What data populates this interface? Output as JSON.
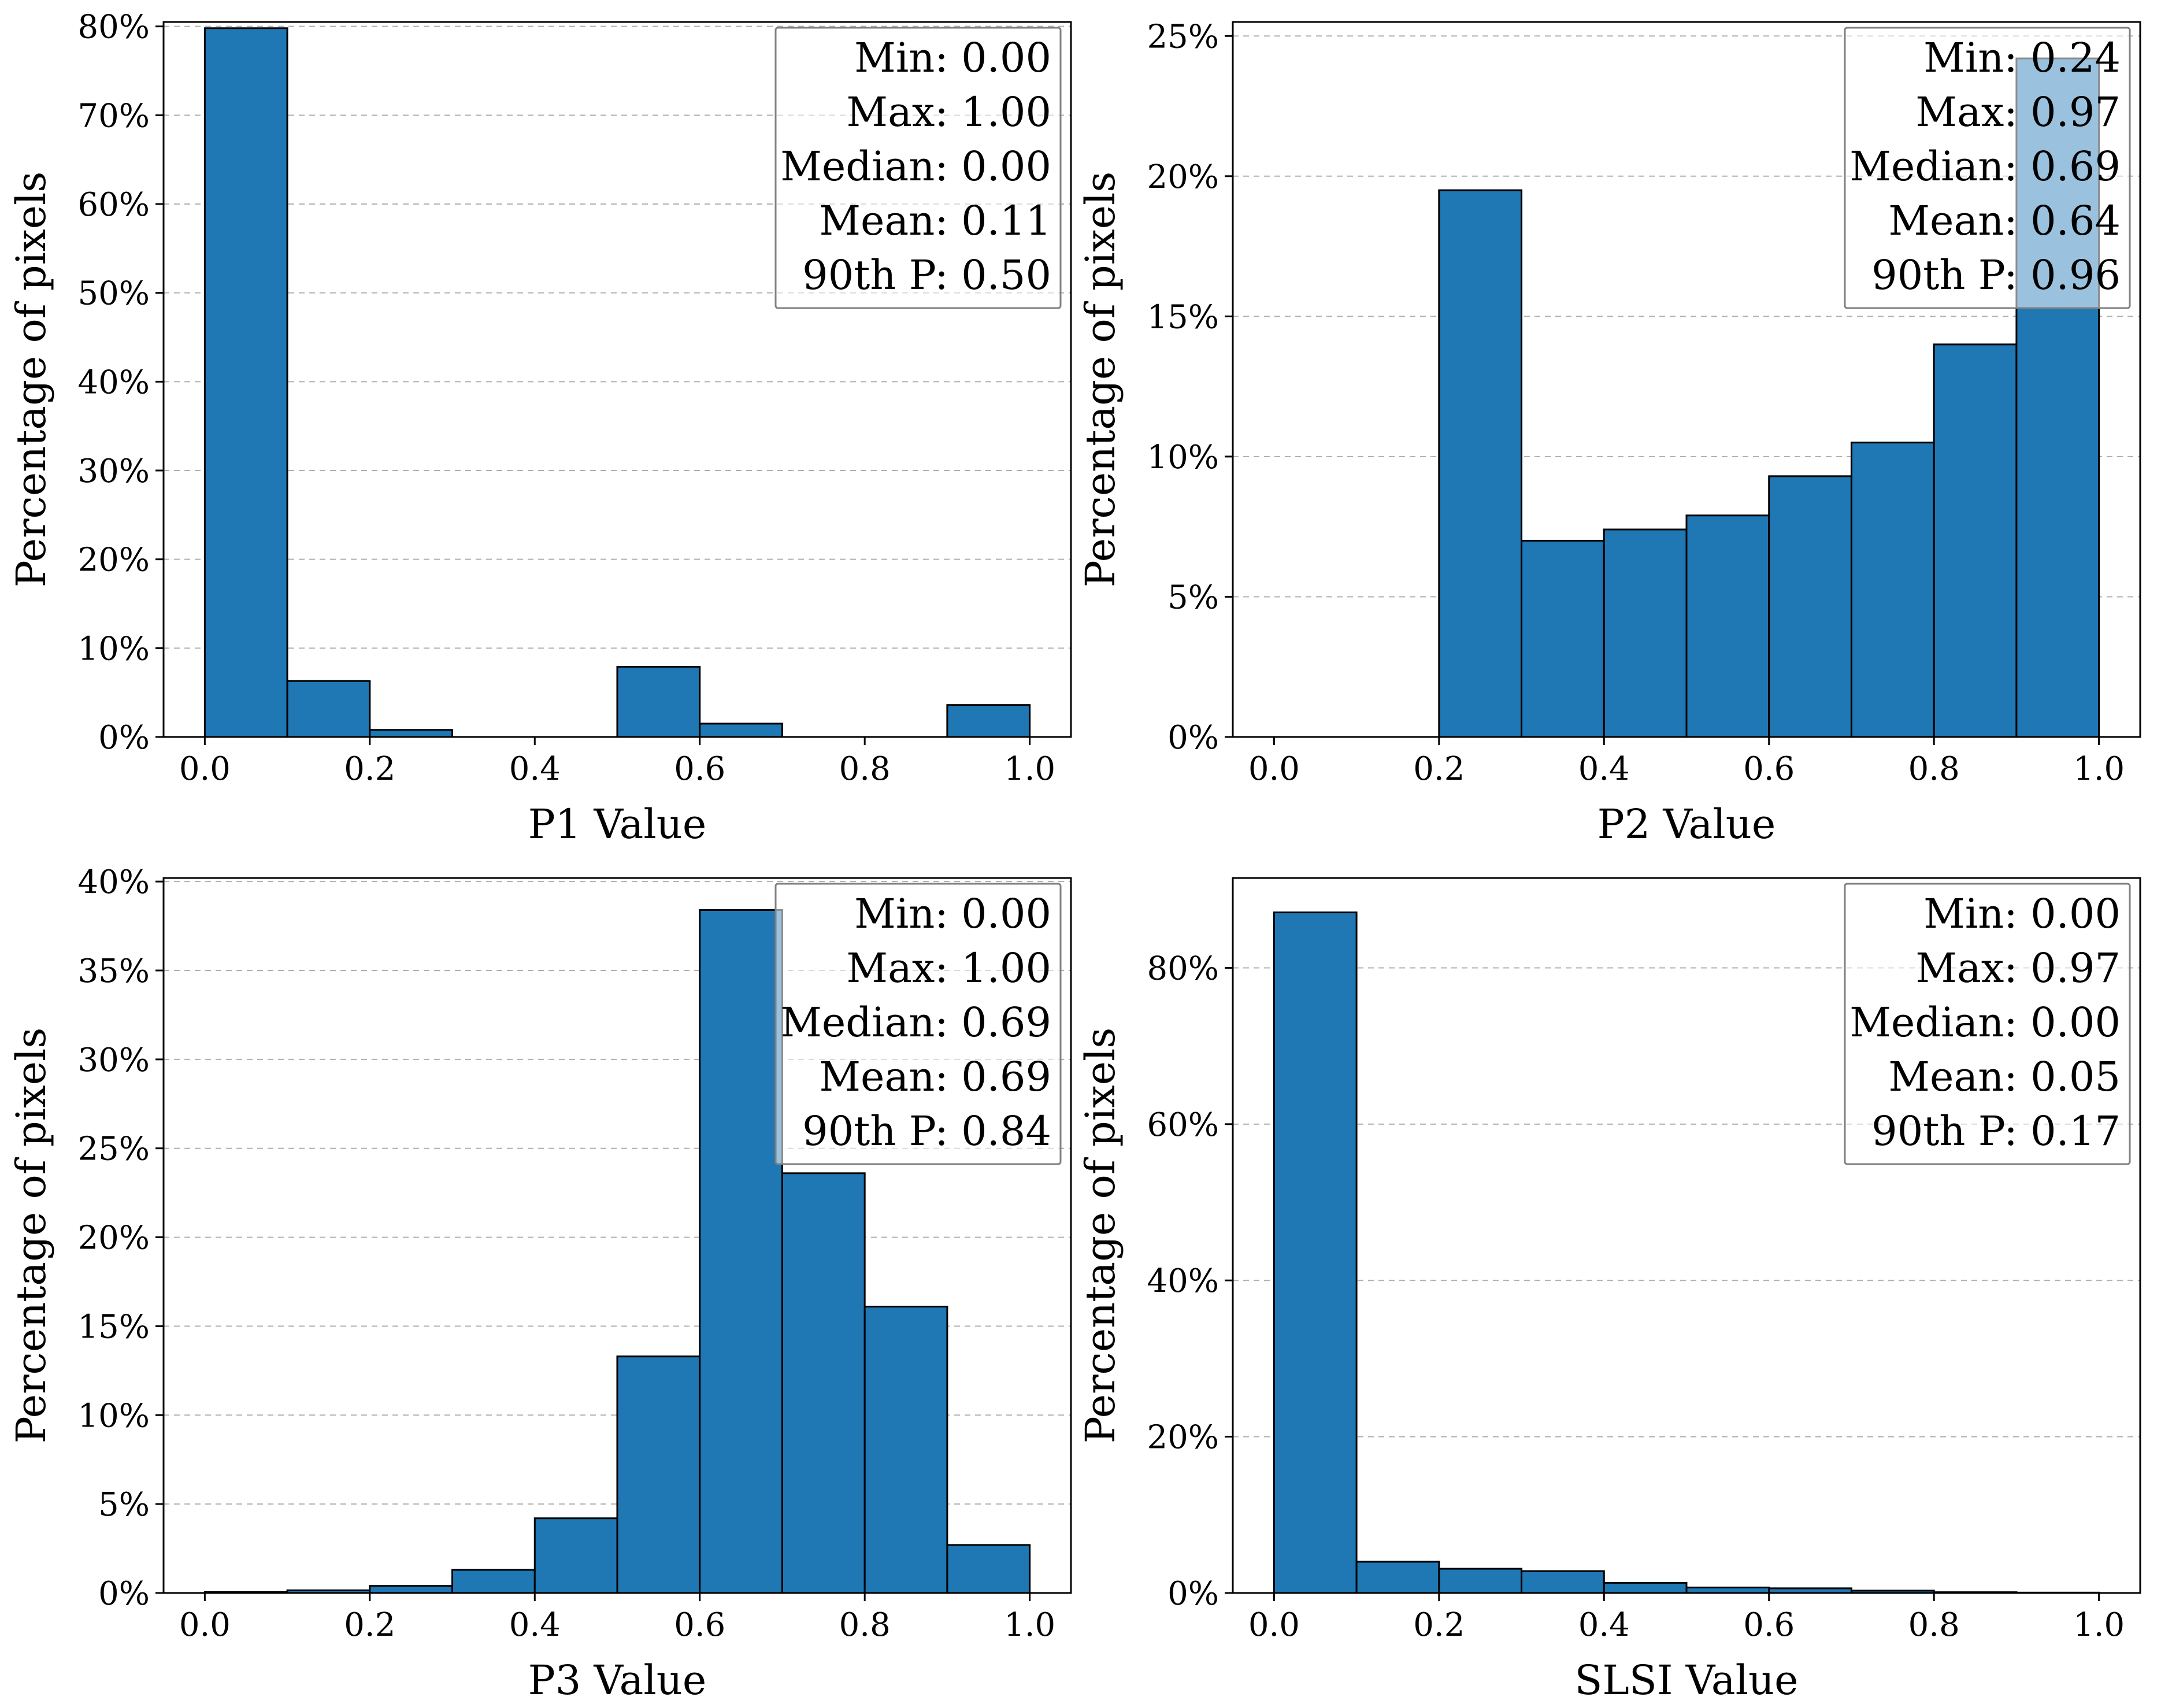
{
  "colors": {
    "bar_fill": "#1f77b4",
    "bar_edge": "#000000",
    "grid": "#b0b0b0",
    "stats_box_border": "#808080",
    "stats_box_fill": "#ffffff"
  },
  "chart_data": [
    {
      "type": "bar",
      "name": "p1",
      "xlabel": "P1 Value",
      "ylabel": "Percentage of pixels",
      "x_range": [
        -0.05,
        1.05
      ],
      "ylim": [
        0,
        80.5
      ],
      "xticks": [
        0.0,
        0.2,
        0.4,
        0.6,
        0.8,
        1.0
      ],
      "xtick_labels": [
        "0.0",
        "0.2",
        "0.4",
        "0.6",
        "0.8",
        "1.0"
      ],
      "yticks": [
        0,
        10,
        20,
        30,
        40,
        50,
        60,
        70,
        80
      ],
      "ytick_labels": [
        "0%",
        "10%",
        "20%",
        "30%",
        "40%",
        "50%",
        "60%",
        "70%",
        "80%"
      ],
      "bin_edges": [
        0.0,
        0.1,
        0.2,
        0.3,
        0.4,
        0.5,
        0.6,
        0.7,
        0.8,
        0.9,
        1.0
      ],
      "values": [
        79.8,
        6.3,
        0.8,
        0.0,
        0.0,
        7.9,
        1.5,
        0.0,
        0.0,
        3.6
      ],
      "grid": "horizontal dashed",
      "stats_box": {
        "placement": "top-right",
        "lines": [
          "Min: 0.00",
          "Max: 1.00",
          "Median: 0.00",
          "Mean: 0.11",
          "90th P: 0.50"
        ]
      }
    },
    {
      "type": "bar",
      "name": "p2",
      "xlabel": "P2 Value",
      "ylabel": "Percentage of pixels",
      "x_range": [
        -0.05,
        1.05
      ],
      "ylim": [
        0,
        25.5
      ],
      "xticks": [
        0.0,
        0.2,
        0.4,
        0.6,
        0.8,
        1.0
      ],
      "xtick_labels": [
        "0.0",
        "0.2",
        "0.4",
        "0.6",
        "0.8",
        "1.0"
      ],
      "yticks": [
        0,
        5,
        10,
        15,
        20,
        25
      ],
      "ytick_labels": [
        "0%",
        "5%",
        "10%",
        "15%",
        "20%",
        "25%"
      ],
      "bin_edges": [
        0.0,
        0.1,
        0.2,
        0.3,
        0.4,
        0.5,
        0.6,
        0.7,
        0.8,
        0.9,
        1.0
      ],
      "values": [
        0.0,
        0.0,
        19.5,
        7.0,
        7.4,
        7.9,
        9.3,
        10.5,
        14.0,
        24.2
      ],
      "grid": "horizontal dashed",
      "stats_box": {
        "placement": "top-right",
        "lines": [
          "Min: 0.24",
          "Max: 0.97",
          "Median: 0.69",
          "Mean: 0.64",
          "90th P: 0.96"
        ]
      }
    },
    {
      "type": "bar",
      "name": "p3",
      "xlabel": "P3 Value",
      "ylabel": "Percentage of pixels",
      "x_range": [
        -0.05,
        1.05
      ],
      "ylim": [
        0,
        40.2
      ],
      "xticks": [
        0.0,
        0.2,
        0.4,
        0.6,
        0.8,
        1.0
      ],
      "xtick_labels": [
        "0.0",
        "0.2",
        "0.4",
        "0.6",
        "0.8",
        "1.0"
      ],
      "yticks": [
        0,
        5,
        10,
        15,
        20,
        25,
        30,
        35,
        40
      ],
      "ytick_labels": [
        "0%",
        "5%",
        "10%",
        "15%",
        "20%",
        "25%",
        "30%",
        "35%",
        "40%"
      ],
      "bin_edges": [
        0.0,
        0.1,
        0.2,
        0.3,
        0.4,
        0.5,
        0.6,
        0.7,
        0.8,
        0.9,
        1.0
      ],
      "values": [
        0.05,
        0.15,
        0.4,
        1.3,
        4.2,
        13.3,
        38.4,
        23.6,
        16.1,
        2.7
      ],
      "grid": "horizontal dashed",
      "stats_box": {
        "placement": "top-right",
        "lines": [
          "Min: 0.00",
          "Max: 1.00",
          "Median: 0.69",
          "Mean: 0.69",
          "90th P: 0.84"
        ]
      }
    },
    {
      "type": "bar",
      "name": "slsi",
      "xlabel": "SLSI Value",
      "ylabel": "Percentage of pixels",
      "x_range": [
        -0.05,
        1.05
      ],
      "ylim": [
        0,
        91.5
      ],
      "xticks": [
        0.0,
        0.2,
        0.4,
        0.6,
        0.8,
        1.0
      ],
      "xtick_labels": [
        "0.0",
        "0.2",
        "0.4",
        "0.6",
        "0.8",
        "1.0"
      ],
      "yticks": [
        0,
        20,
        40,
        60,
        80
      ],
      "ytick_labels": [
        "0%",
        "20%",
        "40%",
        "60%",
        "80%"
      ],
      "bin_edges": [
        0.0,
        0.1,
        0.2,
        0.3,
        0.4,
        0.5,
        0.6,
        0.7,
        0.8,
        0.9,
        1.0
      ],
      "values": [
        87.1,
        4.0,
        3.1,
        2.8,
        1.3,
        0.7,
        0.6,
        0.3,
        0.1,
        0.05
      ],
      "grid": "horizontal dashed",
      "stats_box": {
        "placement": "top-right",
        "lines": [
          "Min: 0.00",
          "Max: 0.97",
          "Median: 0.00",
          "Mean: 0.05",
          "90th P: 0.17"
        ]
      }
    }
  ]
}
